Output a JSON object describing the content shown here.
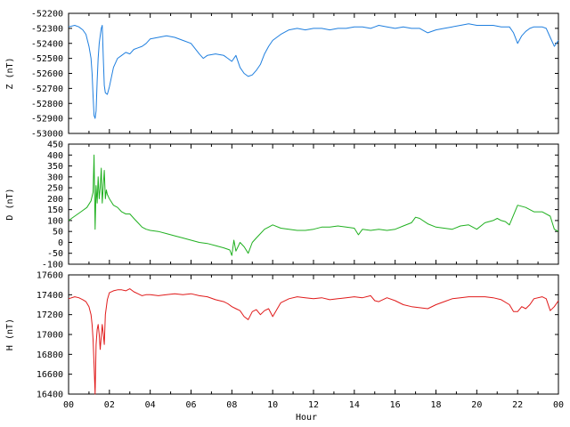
{
  "chart_data": [
    {
      "type": "line",
      "ylabel": "Z (nT)",
      "ylim": [
        -53000,
        -52200
      ],
      "yticks": [
        -52200,
        -52300,
        -52400,
        -52500,
        -52600,
        -52700,
        -52800,
        -52900,
        -53000
      ],
      "series": [
        {
          "color": "#1f7fdf",
          "x": [
            0.0,
            0.3,
            0.5,
            0.7,
            0.85,
            1.0,
            1.1,
            1.15,
            1.2,
            1.25,
            1.3,
            1.35,
            1.4,
            1.45,
            1.5,
            1.55,
            1.6,
            1.65,
            1.7,
            1.75,
            1.8,
            1.9,
            2.0,
            2.2,
            2.4,
            2.6,
            2.8,
            3.0,
            3.2,
            3.4,
            3.6,
            3.8,
            4.0,
            4.4,
            4.8,
            5.2,
            5.6,
            6.0,
            6.4,
            6.6,
            6.8,
            7.2,
            7.6,
            7.8,
            8.0,
            8.2,
            8.4,
            8.6,
            8.8,
            9.0,
            9.2,
            9.4,
            9.6,
            9.8,
            10.0,
            10.4,
            10.8,
            11.2,
            11.6,
            12.0,
            12.4,
            12.8,
            13.2,
            13.6,
            14.0,
            14.4,
            14.8,
            15.0,
            15.2,
            15.6,
            16.0,
            16.4,
            16.8,
            17.2,
            17.6,
            18.0,
            18.4,
            18.8,
            19.2,
            19.6,
            20.0,
            20.4,
            20.8,
            21.2,
            21.6,
            21.8,
            22.0,
            22.2,
            22.4,
            22.6,
            22.8,
            23.2,
            23.4,
            23.6,
            23.8,
            24.0
          ],
          "values": [
            -52290,
            -52280,
            -52290,
            -52310,
            -52340,
            -52420,
            -52500,
            -52600,
            -52750,
            -52880,
            -52900,
            -52850,
            -52650,
            -52500,
            -52400,
            -52350,
            -52300,
            -52280,
            -52500,
            -52680,
            -52730,
            -52740,
            -52690,
            -52560,
            -52500,
            -52480,
            -52460,
            -52470,
            -52440,
            -52430,
            -52420,
            -52400,
            -52370,
            -52360,
            -52350,
            -52360,
            -52380,
            -52400,
            -52470,
            -52500,
            -52480,
            -52470,
            -52480,
            -52500,
            -52520,
            -52480,
            -52560,
            -52600,
            -52620,
            -52610,
            -52580,
            -52540,
            -52470,
            -52420,
            -52380,
            -52340,
            -52310,
            -52300,
            -52310,
            -52300,
            -52300,
            -52310,
            -52300,
            -52300,
            -52290,
            -52290,
            -52300,
            -52290,
            -52280,
            -52290,
            -52300,
            -52290,
            -52300,
            -52300,
            -52330,
            -52310,
            -52300,
            -52290,
            -52280,
            -52270,
            -52280,
            -52280,
            -52280,
            -52290,
            -52290,
            -52330,
            -52400,
            -52350,
            -52320,
            -52300,
            -52290,
            -52290,
            -52300,
            -52360,
            -52420,
            -52380
          ]
        }
      ]
    },
    {
      "type": "line",
      "ylabel": "D (nT)",
      "ylim": [
        -100,
        450
      ],
      "yticks": [
        450,
        400,
        350,
        300,
        250,
        200,
        150,
        100,
        50,
        0,
        -50,
        -100
      ],
      "series": [
        {
          "color": "#20b020",
          "x": [
            0.0,
            0.3,
            0.6,
            0.9,
            1.1,
            1.2,
            1.25,
            1.3,
            1.35,
            1.4,
            1.45,
            1.5,
            1.55,
            1.6,
            1.65,
            1.7,
            1.75,
            1.8,
            1.85,
            1.9,
            2.0,
            2.2,
            2.4,
            2.6,
            2.8,
            3.0,
            3.2,
            3.4,
            3.6,
            3.8,
            4.0,
            4.4,
            4.8,
            5.2,
            5.6,
            6.0,
            6.4,
            6.8,
            7.2,
            7.6,
            7.9,
            8.0,
            8.1,
            8.2,
            8.4,
            8.6,
            8.8,
            9.0,
            9.2,
            9.4,
            9.6,
            9.8,
            10.0,
            10.4,
            10.8,
            11.2,
            11.6,
            12.0,
            12.4,
            12.8,
            13.2,
            13.6,
            14.0,
            14.2,
            14.4,
            14.8,
            15.2,
            15.6,
            16.0,
            16.4,
            16.8,
            17.0,
            17.2,
            17.6,
            18.0,
            18.4,
            18.8,
            19.2,
            19.6,
            20.0,
            20.4,
            20.8,
            21.0,
            21.2,
            21.4,
            21.6,
            22.0,
            22.4,
            22.8,
            23.2,
            23.6,
            23.8,
            24.0
          ],
          "values": [
            100,
            120,
            140,
            160,
            190,
            230,
            400,
            60,
            260,
            180,
            300,
            200,
            250,
            340,
            180,
            260,
            330,
            200,
            240,
            220,
            200,
            170,
            160,
            140,
            130,
            130,
            110,
            90,
            70,
            60,
            55,
            50,
            40,
            30,
            20,
            10,
            0,
            -5,
            -15,
            -25,
            -35,
            -60,
            10,
            -40,
            0,
            -20,
            -50,
            0,
            20,
            40,
            60,
            70,
            80,
            65,
            60,
            55,
            55,
            60,
            70,
            70,
            75,
            70,
            65,
            35,
            60,
            55,
            60,
            55,
            60,
            75,
            90,
            115,
            110,
            85,
            70,
            65,
            60,
            75,
            80,
            60,
            90,
            100,
            110,
            100,
            95,
            80,
            170,
            160,
            140,
            140,
            120,
            60,
            50
          ]
        }
      ]
    },
    {
      "type": "line",
      "ylabel": "H (nT)",
      "xlabel": "Hour",
      "ylim": [
        16400,
        17600
      ],
      "yticks": [
        17600,
        17400,
        17200,
        17000,
        16800,
        16600,
        16400
      ],
      "xticks": [
        "00",
        "02",
        "04",
        "06",
        "08",
        "10",
        "12",
        "14",
        "16",
        "18",
        "20",
        "22",
        "00"
      ],
      "series": [
        {
          "color": "#e01a1a",
          "x": [
            0.0,
            0.3,
            0.5,
            0.7,
            0.85,
            1.0,
            1.1,
            1.15,
            1.2,
            1.25,
            1.3,
            1.35,
            1.4,
            1.45,
            1.5,
            1.55,
            1.6,
            1.65,
            1.7,
            1.75,
            1.8,
            1.9,
            2.0,
            2.2,
            2.4,
            2.6,
            2.8,
            3.0,
            3.2,
            3.4,
            3.6,
            3.8,
            4.0,
            4.4,
            4.8,
            5.2,
            5.6,
            6.0,
            6.4,
            6.8,
            7.2,
            7.6,
            7.8,
            8.0,
            8.2,
            8.4,
            8.6,
            8.8,
            9.0,
            9.2,
            9.4,
            9.6,
            9.8,
            10.0,
            10.4,
            10.8,
            11.2,
            11.6,
            12.0,
            12.4,
            12.8,
            13.2,
            13.6,
            14.0,
            14.4,
            14.8,
            15.0,
            15.2,
            15.6,
            16.0,
            16.4,
            16.8,
            17.2,
            17.6,
            18.0,
            18.4,
            18.8,
            19.2,
            19.6,
            20.0,
            20.4,
            20.8,
            21.2,
            21.6,
            21.8,
            22.0,
            22.2,
            22.4,
            22.6,
            22.8,
            23.2,
            23.4,
            23.6,
            23.8,
            24.0
          ],
          "values": [
            17360,
            17380,
            17370,
            17350,
            17330,
            17280,
            17200,
            17100,
            16950,
            16700,
            16400,
            16900,
            17050,
            17100,
            17000,
            16850,
            16980,
            17100,
            17000,
            16900,
            17200,
            17350,
            17420,
            17440,
            17450,
            17450,
            17440,
            17460,
            17430,
            17410,
            17390,
            17400,
            17400,
            17390,
            17400,
            17410,
            17400,
            17410,
            17390,
            17380,
            17350,
            17330,
            17310,
            17280,
            17260,
            17240,
            17180,
            17150,
            17230,
            17250,
            17200,
            17240,
            17260,
            17180,
            17320,
            17360,
            17380,
            17370,
            17360,
            17370,
            17350,
            17360,
            17370,
            17380,
            17370,
            17390,
            17340,
            17330,
            17370,
            17340,
            17300,
            17280,
            17270,
            17260,
            17300,
            17330,
            17360,
            17370,
            17380,
            17380,
            17380,
            17370,
            17350,
            17300,
            17230,
            17230,
            17280,
            17260,
            17300,
            17360,
            17380,
            17360,
            17240,
            17280,
            17340
          ]
        }
      ]
    }
  ]
}
